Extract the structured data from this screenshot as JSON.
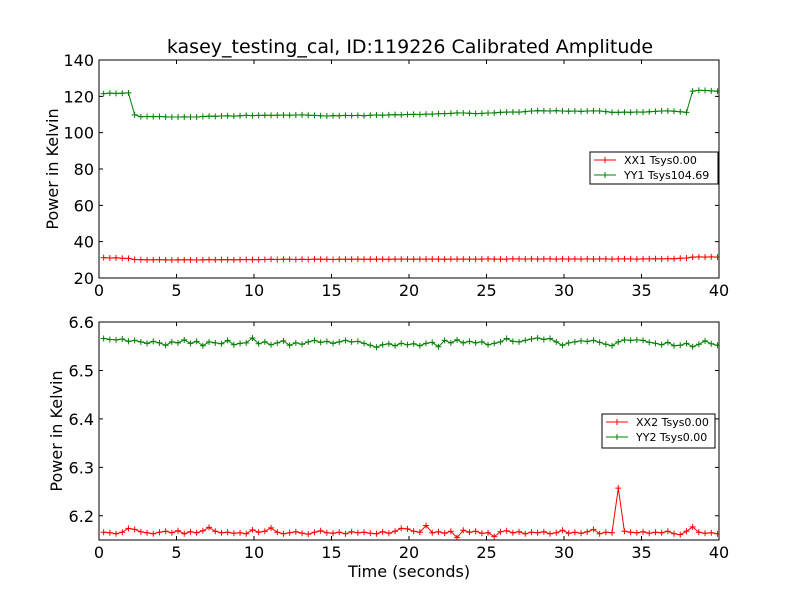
{
  "figure": {
    "title": "kasey_testing_cal, ID:119226 Calibrated Amplitude"
  },
  "chart_data": [
    {
      "type": "line",
      "title": "kasey_testing_cal, ID:119226 Calibrated Amplitude",
      "xlabel": "",
      "ylabel": "Power in Kelvin",
      "xlim": [
        0,
        40
      ],
      "ylim": [
        20,
        140
      ],
      "x_ticks": [
        "0",
        "5",
        "10",
        "15",
        "20",
        "25",
        "30",
        "35",
        "40"
      ],
      "y_ticks": [
        "20",
        "40",
        "60",
        "80",
        "100",
        "120",
        "140"
      ],
      "legend_position": "right",
      "grid": false,
      "marker": "+",
      "series": [
        {
          "name": "XX1 Tsys0.00",
          "color": "#ff0000",
          "x": [
            0.3,
            0.7,
            1.1,
            1.5,
            1.9,
            2.3,
            2.7,
            3.1,
            3.5,
            3.9,
            4.3,
            4.7,
            5.1,
            5.5,
            5.9,
            6.3,
            6.7,
            7.1,
            7.5,
            7.9,
            8.3,
            8.7,
            9.1,
            9.5,
            9.9,
            10.3,
            10.7,
            11.1,
            11.5,
            11.9,
            12.3,
            12.7,
            13.1,
            13.5,
            13.9,
            14.3,
            14.7,
            15.1,
            15.5,
            15.9,
            16.3,
            16.7,
            17.1,
            17.5,
            17.9,
            18.3,
            18.7,
            19.1,
            19.5,
            19.9,
            20.3,
            20.7,
            21.1,
            21.5,
            21.9,
            22.3,
            22.7,
            23.1,
            23.5,
            23.9,
            24.3,
            24.7,
            25.1,
            25.5,
            25.9,
            26.3,
            26.7,
            27.1,
            27.5,
            27.9,
            28.3,
            28.7,
            29.1,
            29.5,
            29.9,
            30.3,
            30.7,
            31.1,
            31.5,
            31.9,
            32.3,
            32.7,
            33.1,
            33.5,
            33.9,
            34.3,
            34.7,
            35.1,
            35.5,
            35.9,
            36.3,
            36.7,
            37.1,
            37.5,
            37.9,
            38.3,
            38.7,
            39.1,
            39.5,
            39.9
          ],
          "y": [
            31.2,
            31.0,
            31.1,
            30.9,
            30.8,
            30.2,
            30.1,
            30.0,
            30.0,
            30.1,
            30.0,
            29.9,
            30.0,
            30.0,
            30.0,
            29.9,
            30.0,
            30.1,
            30.0,
            30.1,
            30.1,
            30.0,
            30.1,
            30.2,
            30.1,
            30.1,
            30.2,
            30.3,
            30.2,
            30.3,
            30.3,
            30.2,
            30.3,
            30.2,
            30.4,
            30.3,
            30.3,
            30.2,
            30.3,
            30.3,
            30.3,
            30.4,
            30.3,
            30.3,
            30.4,
            30.3,
            30.3,
            30.4,
            30.4,
            30.4,
            30.3,
            30.4,
            30.4,
            30.4,
            30.4,
            30.3,
            30.4,
            30.4,
            30.4,
            30.4,
            30.4,
            30.4,
            30.5,
            30.4,
            30.4,
            30.4,
            30.5,
            30.5,
            30.4,
            30.5,
            30.4,
            30.5,
            30.5,
            30.4,
            30.5,
            30.4,
            30.5,
            30.4,
            30.5,
            30.4,
            30.5,
            30.5,
            30.4,
            30.5,
            30.5,
            30.5,
            30.4,
            30.5,
            30.5,
            30.6,
            30.5,
            30.6,
            30.6,
            30.9,
            31.0,
            31.5,
            31.6,
            31.5,
            31.6,
            31.5
          ]
        },
        {
          "name": "YY1 Tsys104.69",
          "color": "#008000",
          "x": [
            0.3,
            0.7,
            1.1,
            1.5,
            1.9,
            2.3,
            2.7,
            3.1,
            3.5,
            3.9,
            4.3,
            4.7,
            5.1,
            5.5,
            5.9,
            6.3,
            6.7,
            7.1,
            7.5,
            7.9,
            8.3,
            8.7,
            9.1,
            9.5,
            9.9,
            10.3,
            10.7,
            11.1,
            11.5,
            11.9,
            12.3,
            12.7,
            13.1,
            13.5,
            13.9,
            14.3,
            14.7,
            15.1,
            15.5,
            15.9,
            16.3,
            16.7,
            17.1,
            17.5,
            17.9,
            18.3,
            18.7,
            19.1,
            19.5,
            19.9,
            20.3,
            20.7,
            21.1,
            21.5,
            21.9,
            22.3,
            22.7,
            23.1,
            23.5,
            23.9,
            24.3,
            24.7,
            25.1,
            25.5,
            25.9,
            26.3,
            26.7,
            27.1,
            27.5,
            27.9,
            28.3,
            28.7,
            29.1,
            29.5,
            29.9,
            30.3,
            30.7,
            31.1,
            31.5,
            31.9,
            32.3,
            32.7,
            33.1,
            33.5,
            33.9,
            34.3,
            34.7,
            35.1,
            35.5,
            35.9,
            36.3,
            36.7,
            37.1,
            37.5,
            37.9,
            38.3,
            38.7,
            39.1,
            39.5,
            39.9
          ],
          "y": [
            121.5,
            121.8,
            121.6,
            121.7,
            121.9,
            109.8,
            108.8,
            108.9,
            108.8,
            108.9,
            108.7,
            108.6,
            108.6,
            108.7,
            108.6,
            108.6,
            108.9,
            109.1,
            109.0,
            109.2,
            109.3,
            109.1,
            109.3,
            109.5,
            109.4,
            109.5,
            109.6,
            109.5,
            109.6,
            109.7,
            109.6,
            109.7,
            109.8,
            109.6,
            109.5,
            109.3,
            109.2,
            109.4,
            109.3,
            109.5,
            109.4,
            109.5,
            109.3,
            109.6,
            109.7,
            109.6,
            109.8,
            109.9,
            109.8,
            110.0,
            110.1,
            110.0,
            110.2,
            110.2,
            110.4,
            110.5,
            110.6,
            110.9,
            110.8,
            110.7,
            110.5,
            110.6,
            110.8,
            110.9,
            111.2,
            111.3,
            111.4,
            111.3,
            111.6,
            111.9,
            112.1,
            112.0,
            111.9,
            112.1,
            111.9,
            111.8,
            111.9,
            111.7,
            111.9,
            112.0,
            111.9,
            111.6,
            111.2,
            111.2,
            111.3,
            111.2,
            111.4,
            111.3,
            111.5,
            111.7,
            111.9,
            112.0,
            111.8,
            111.5,
            111.2,
            122.9,
            123.3,
            123.2,
            123.0,
            122.8
          ]
        }
      ]
    },
    {
      "type": "line",
      "title": "",
      "xlabel": "Time (seconds)",
      "ylabel": "Power in Kelvin",
      "xlim": [
        0,
        40
      ],
      "ylim": [
        6.15,
        6.6
      ],
      "x_ticks": [
        "0",
        "5",
        "10",
        "15",
        "20",
        "25",
        "30",
        "35",
        "40"
      ],
      "y_ticks": [
        "6.2",
        "6.3",
        "6.4",
        "6.5",
        "6.6"
      ],
      "legend_position": "right",
      "grid": false,
      "marker": "+",
      "series": [
        {
          "name": "XX2 Tsys0.00",
          "color": "#ff0000",
          "x": [
            0.3,
            0.7,
            1.1,
            1.5,
            1.9,
            2.3,
            2.7,
            3.1,
            3.5,
            3.9,
            4.3,
            4.7,
            5.1,
            5.5,
            5.9,
            6.3,
            6.7,
            7.1,
            7.5,
            7.9,
            8.3,
            8.7,
            9.1,
            9.5,
            9.9,
            10.3,
            10.7,
            11.1,
            11.5,
            11.9,
            12.3,
            12.7,
            13.1,
            13.5,
            13.9,
            14.3,
            14.7,
            15.1,
            15.5,
            15.9,
            16.3,
            16.7,
            17.1,
            17.5,
            17.9,
            18.3,
            18.7,
            19.1,
            19.5,
            19.9,
            20.3,
            20.7,
            21.1,
            21.5,
            21.9,
            22.3,
            22.7,
            23.1,
            23.5,
            23.9,
            24.3,
            24.7,
            25.1,
            25.5,
            25.9,
            26.3,
            26.7,
            27.1,
            27.5,
            27.9,
            28.3,
            28.7,
            29.1,
            29.5,
            29.9,
            30.3,
            30.7,
            31.1,
            31.5,
            31.9,
            32.3,
            32.7,
            33.1,
            33.5,
            33.9,
            34.3,
            34.7,
            35.1,
            35.5,
            35.9,
            36.3,
            36.7,
            37.1,
            37.5,
            37.9,
            38.3,
            38.7,
            39.1,
            39.5,
            39.9
          ],
          "y": [
            6.166,
            6.165,
            6.163,
            6.166,
            6.174,
            6.172,
            6.167,
            6.165,
            6.163,
            6.166,
            6.168,
            6.165,
            6.169,
            6.163,
            6.167,
            6.165,
            6.169,
            6.176,
            6.168,
            6.165,
            6.166,
            6.164,
            6.165,
            6.163,
            6.171,
            6.166,
            6.168,
            6.175,
            6.166,
            6.163,
            6.165,
            6.167,
            6.164,
            6.162,
            6.166,
            6.169,
            6.165,
            6.164,
            6.166,
            6.163,
            6.167,
            6.165,
            6.166,
            6.164,
            6.163,
            6.167,
            6.164,
            6.168,
            6.174,
            6.173,
            6.168,
            6.166,
            6.18,
            6.165,
            6.167,
            6.164,
            6.168,
            6.155,
            6.17,
            6.166,
            6.168,
            6.164,
            6.165,
            6.157,
            6.167,
            6.169,
            6.165,
            6.167,
            6.163,
            6.166,
            6.165,
            6.167,
            6.163,
            6.165,
            6.17,
            6.164,
            6.166,
            6.164,
            6.167,
            6.172,
            6.163,
            6.166,
            6.165,
            6.257,
            6.168,
            6.166,
            6.165,
            6.167,
            6.164,
            6.166,
            6.165,
            6.168,
            6.163,
            6.161,
            6.168,
            6.177,
            6.166,
            6.164,
            6.165,
            6.163
          ]
        },
        {
          "name": "YY2 Tsys0.00",
          "color": "#008000",
          "x": [
            0.3,
            0.7,
            1.1,
            1.5,
            1.9,
            2.3,
            2.7,
            3.1,
            3.5,
            3.9,
            4.3,
            4.7,
            5.1,
            5.5,
            5.9,
            6.3,
            6.7,
            7.1,
            7.5,
            7.9,
            8.3,
            8.7,
            9.1,
            9.5,
            9.9,
            10.3,
            10.7,
            11.1,
            11.5,
            11.9,
            12.3,
            12.7,
            13.1,
            13.5,
            13.9,
            14.3,
            14.7,
            15.1,
            15.5,
            15.9,
            16.3,
            16.7,
            17.1,
            17.5,
            17.9,
            18.3,
            18.7,
            19.1,
            19.5,
            19.9,
            20.3,
            20.7,
            21.1,
            21.5,
            21.9,
            22.3,
            22.7,
            23.1,
            23.5,
            23.9,
            24.3,
            24.7,
            25.1,
            25.5,
            25.9,
            26.3,
            26.7,
            27.1,
            27.5,
            27.9,
            28.3,
            28.7,
            29.1,
            29.5,
            29.9,
            30.3,
            30.7,
            31.1,
            31.5,
            31.9,
            32.3,
            32.7,
            33.1,
            33.5,
            33.9,
            34.3,
            34.7,
            35.1,
            35.5,
            35.9,
            36.3,
            36.7,
            37.1,
            37.5,
            37.9,
            38.3,
            38.7,
            39.1,
            39.5,
            39.9
          ],
          "y": [
            6.566,
            6.564,
            6.563,
            6.565,
            6.56,
            6.562,
            6.559,
            6.556,
            6.56,
            6.557,
            6.552,
            6.559,
            6.557,
            6.563,
            6.556,
            6.56,
            6.551,
            6.559,
            6.557,
            6.555,
            6.562,
            6.553,
            6.556,
            6.557,
            6.567,
            6.555,
            6.559,
            6.553,
            6.557,
            6.561,
            6.552,
            6.557,
            6.554,
            6.559,
            6.562,
            6.558,
            6.56,
            6.556,
            6.559,
            6.562,
            6.559,
            6.56,
            6.556,
            6.552,
            6.548,
            6.553,
            6.555,
            6.551,
            6.556,
            6.553,
            6.555,
            6.551,
            6.556,
            6.558,
            6.549,
            6.562,
            6.557,
            6.563,
            6.557,
            6.56,
            6.557,
            6.559,
            6.553,
            6.556,
            6.559,
            6.566,
            6.56,
            6.559,
            6.562,
            6.565,
            6.567,
            6.564,
            6.566,
            6.559,
            6.552,
            6.557,
            6.559,
            6.561,
            6.56,
            6.562,
            6.558,
            6.554,
            6.551,
            6.559,
            6.563,
            6.562,
            6.563,
            6.562,
            6.558,
            6.556,
            6.553,
            6.558,
            6.551,
            6.552,
            6.556,
            6.549,
            6.554,
            6.561,
            6.555,
            6.552
          ]
        }
      ]
    }
  ]
}
